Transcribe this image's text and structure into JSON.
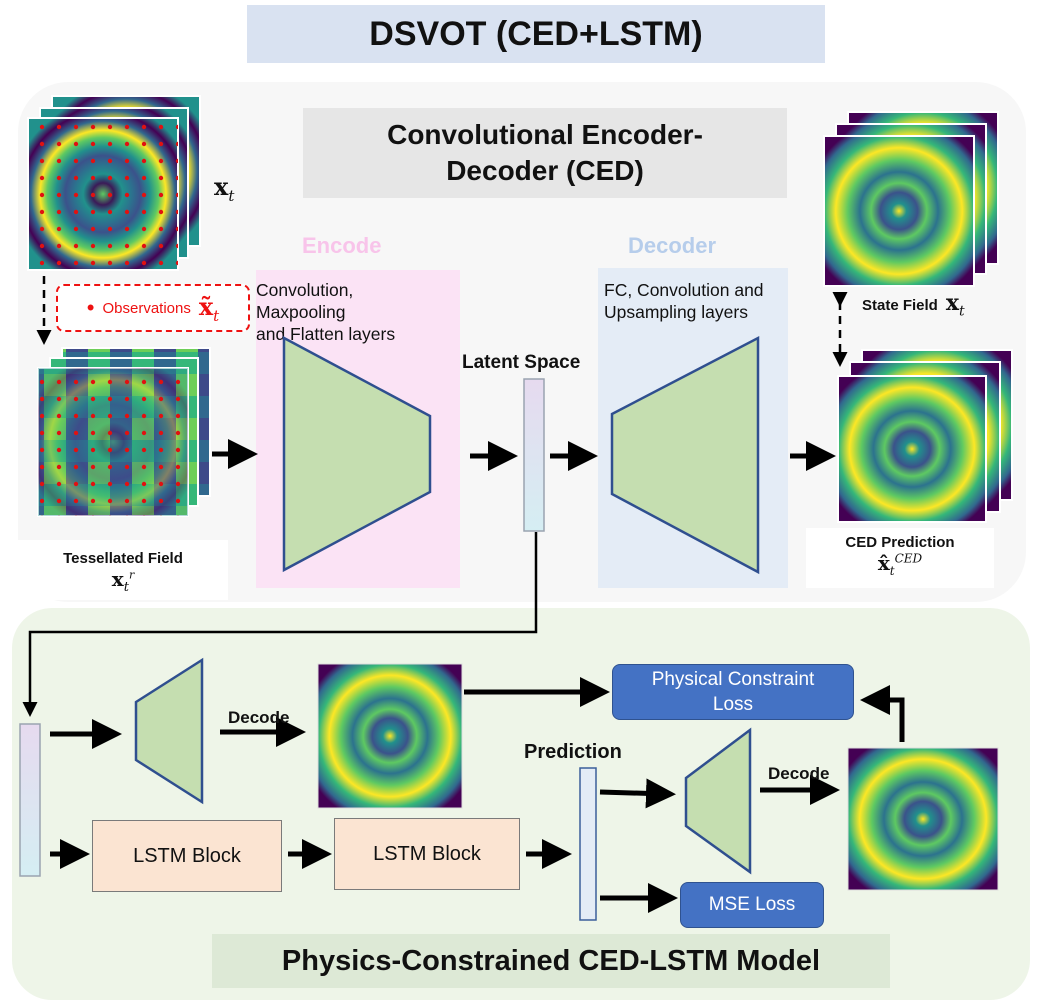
{
  "title": "DSVOT (CED+LSTM)",
  "ced": {
    "title_line1": "Convolutional Encoder-",
    "title_line2": "Decoder (CED)",
    "encoder_label": "Encode",
    "encoder_desc_line1": "Convolution,",
    "encoder_desc_line2": "Maxpooling",
    "encoder_desc_line3": "and Flatten layers",
    "decoder_label": "Decoder",
    "decoder_desc_line1": "FC, Convolution and",
    "decoder_desc_line2": "Upsampling layers",
    "latent_label": "Latent Space"
  },
  "inputs": {
    "x_t_symbol": "x",
    "x_t_sub": "t",
    "observations_label": "Observations",
    "observations_symbol": "x̃",
    "observations_sub": "t",
    "tessellated_label": "Tessellated Field",
    "tessellated_symbol": "x",
    "tessellated_sub": "t",
    "tessellated_sup": "r"
  },
  "outputs": {
    "state_label": "State Field",
    "state_symbol": "x",
    "state_sub": "t",
    "ced_pred_label": "CED Prediction",
    "ced_pred_symbol": "x̂",
    "ced_pred_sub": "t",
    "ced_pred_sup": "CED"
  },
  "lstm": {
    "decode_label_1": "Decode",
    "decode_label_2": "Decode",
    "block1_label": "LSTM Block",
    "block2_label": "LSTM Block",
    "prediction_label": "Prediction",
    "physical_line1": "Physical Constraint",
    "physical_line2": "Loss",
    "mse_label": "MSE Loss",
    "model_title": "Physics-Constrained CED-LSTM Model"
  },
  "colors": {
    "title_bg": "#d9e2f1",
    "encoder_bg": "#fbe3f5",
    "decoder_bg": "#e4ecf6",
    "trapezoid_fill": "#c5deb0",
    "trapezoid_stroke": "#2f4f8f",
    "observation_red": "#e11111",
    "loss_blue": "#4472c4",
    "lstm_block": "#fbe4d2",
    "viridis_dark": "#3b1a58",
    "viridis_teal": "#21918c",
    "viridis_yellow": "#fde725"
  }
}
